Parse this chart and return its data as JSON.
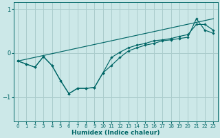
{
  "xlabel": "Humidex (Indice chaleur)",
  "bg_color": "#cce8e8",
  "grid_color": "#aacccc",
  "line_color": "#006666",
  "xlim": [
    -0.5,
    23.5
  ],
  "ylim": [
    -1.55,
    1.15
  ],
  "yticks": [
    1,
    0,
    -1
  ],
  "xticks": [
    0,
    1,
    2,
    3,
    4,
    5,
    6,
    7,
    8,
    9,
    10,
    11,
    12,
    13,
    14,
    15,
    16,
    17,
    18,
    19,
    20,
    21,
    22,
    23
  ],
  "line1_x": [
    0,
    1,
    2,
    3,
    4,
    5,
    6,
    7,
    8,
    9,
    10,
    11,
    12,
    13,
    14,
    15,
    16,
    17,
    18,
    19,
    20,
    21,
    22,
    23
  ],
  "line1_y": [
    -0.18,
    -0.25,
    -0.32,
    -0.08,
    -0.28,
    -0.62,
    -0.92,
    -0.8,
    -0.8,
    -0.78,
    -0.45,
    -0.28,
    -0.1,
    0.05,
    0.12,
    0.18,
    0.22,
    0.28,
    0.3,
    0.33,
    0.36,
    0.78,
    0.52,
    0.45
  ],
  "line2_x": [
    0,
    23
  ],
  "line2_y": [
    -0.18,
    0.78
  ],
  "line3_x": [
    0,
    1,
    2,
    3,
    4,
    5,
    6,
    7,
    8,
    9,
    10,
    11,
    12,
    13,
    14,
    15,
    16,
    17,
    18,
    19,
    20,
    21,
    22,
    23
  ],
  "line3_y": [
    -0.18,
    -0.25,
    -0.32,
    -0.08,
    -0.28,
    -0.62,
    -0.92,
    -0.8,
    -0.8,
    -0.78,
    -0.45,
    -0.1,
    0.02,
    0.12,
    0.18,
    0.22,
    0.28,
    0.3,
    0.33,
    0.38,
    0.42,
    0.65,
    0.65,
    0.52
  ]
}
